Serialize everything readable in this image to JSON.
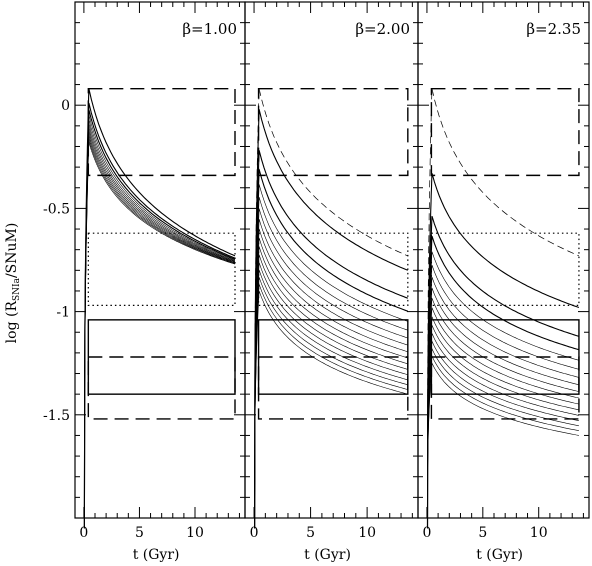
{
  "chart_data": {
    "type": "line",
    "ylabel": "log (R",
    "ylabel_sub": "SNIa",
    "ylabel_tail": "/SNuM)",
    "ylim": [
      -2,
      0.5
    ],
    "yticks": [
      "0",
      "-0.5",
      "-1",
      "-1.5"
    ],
    "ytick_values": [
      0,
      -0.5,
      -1,
      -1.5
    ],
    "panels": [
      {
        "beta_label": "β=1.00",
        "xlabel": "t (Gyr)",
        "xlim": [
          -0.8,
          14.5
        ],
        "xticks": [
          "0",
          "5",
          "10"
        ],
        "xtick_values": [
          0,
          5,
          10
        ],
        "curves": {
          "peak_max": 0.08,
          "end_max": -0.73,
          "peak_min": -0.18,
          "end_min": -0.77,
          "count": 12,
          "dashed_peak": null
        }
      },
      {
        "beta_label": "β=2.00",
        "xlabel": "t (Gyr)",
        "xlim": [
          -0.8,
          14.5
        ],
        "xticks": [
          "0",
          "5",
          "10"
        ],
        "xtick_values": [
          0,
          5,
          10
        ],
        "curves": {
          "peak_max": -0.02,
          "end_max": -0.8,
          "peak_min": -0.9,
          "end_min": -1.4,
          "count": 16,
          "dashed_peak": 0.08,
          "dashed_end": -0.73
        }
      },
      {
        "beta_label": "β=2.35",
        "xlabel": "t (Gyr)",
        "xlim": [
          -0.8,
          14.5
        ],
        "xticks": [
          "0",
          "5",
          "10"
        ],
        "xtick_values": [
          0,
          5,
          10
        ],
        "curves": {
          "peak_max": -0.33,
          "end_max": -0.98,
          "peak_min": -1.25,
          "end_min": -1.6,
          "count": 16,
          "dashed_peak": 0.08,
          "dashed_end": -0.73
        }
      }
    ],
    "reference_boxes": {
      "x_range": [
        0.4,
        13.6
      ],
      "dashed_upper": [
        -0.34,
        0.08
      ],
      "dotted": [
        -0.97,
        -0.62
      ],
      "solid": [
        -1.4,
        -1.04
      ],
      "dashed_lower": [
        -1.52,
        -1.22
      ]
    }
  }
}
